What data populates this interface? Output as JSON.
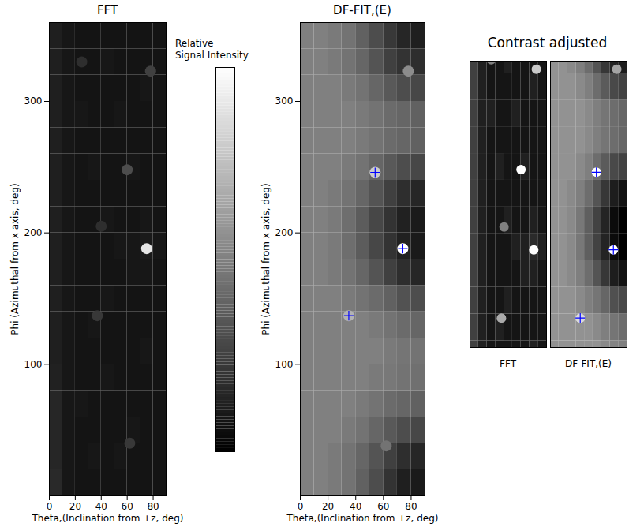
{
  "chart_data": [
    {
      "type": "heatmap",
      "title": "FFT",
      "xlabel": "Theta,(Inclination from +z, deg)",
      "ylabel": "Phi (Azimuthal from x axis, deg)",
      "xlim": [
        0,
        90
      ],
      "ylim": [
        0,
        360
      ],
      "xticks": [
        0,
        20,
        40,
        60,
        80
      ],
      "yticks": [
        100,
        200,
        300
      ],
      "theta_bins": [
        0,
        10,
        20,
        30,
        40,
        50,
        60,
        70,
        80,
        90
      ],
      "phi_bins": [
        0,
        20,
        40,
        60,
        80,
        100,
        120,
        140,
        160,
        180,
        200,
        220,
        240,
        260,
        280,
        300,
        320,
        340,
        360
      ],
      "cells": [
        [
          0.16,
          0.09,
          0.08,
          0.08,
          0.08,
          0.08,
          0.08,
          0.08,
          0.08
        ],
        [
          0.15,
          0.09,
          0.08,
          0.09,
          0.08,
          0.09,
          0.08,
          0.08,
          0.08
        ],
        [
          0.15,
          0.09,
          0.08,
          0.08,
          0.08,
          0.08,
          0.09,
          0.08,
          0.08
        ],
        [
          0.15,
          0.09,
          0.09,
          0.08,
          0.08,
          0.08,
          0.08,
          0.08,
          0.08
        ],
        [
          0.13,
          0.09,
          0.08,
          0.08,
          0.09,
          0.08,
          0.08,
          0.08,
          0.08
        ],
        [
          0.12,
          0.09,
          0.08,
          0.08,
          0.08,
          0.08,
          0.08,
          0.09,
          0.08
        ],
        [
          0.12,
          0.09,
          0.08,
          0.09,
          0.08,
          0.08,
          0.08,
          0.08,
          0.08
        ],
        [
          0.12,
          0.09,
          0.08,
          0.08,
          0.09,
          0.08,
          0.08,
          0.08,
          0.08
        ],
        [
          0.12,
          0.09,
          0.08,
          0.08,
          0.08,
          0.08,
          0.09,
          0.09,
          0.08
        ],
        [
          0.12,
          0.09,
          0.08,
          0.08,
          0.08,
          0.09,
          0.09,
          0.1,
          0.09
        ],
        [
          0.12,
          0.09,
          0.08,
          0.08,
          0.09,
          0.08,
          0.08,
          0.09,
          0.08
        ],
        [
          0.12,
          0.09,
          0.08,
          0.08,
          0.08,
          0.08,
          0.08,
          0.08,
          0.08
        ],
        [
          0.12,
          0.09,
          0.08,
          0.09,
          0.08,
          0.08,
          0.09,
          0.08,
          0.08
        ],
        [
          0.12,
          0.09,
          0.08,
          0.08,
          0.08,
          0.08,
          0.08,
          0.08,
          0.08
        ],
        [
          0.12,
          0.09,
          0.09,
          0.08,
          0.08,
          0.09,
          0.08,
          0.08,
          0.08
        ],
        [
          0.12,
          0.09,
          0.08,
          0.08,
          0.08,
          0.08,
          0.08,
          0.09,
          0.08
        ],
        [
          0.12,
          0.09,
          0.08,
          0.08,
          0.09,
          0.08,
          0.08,
          0.08,
          0.08
        ],
        [
          0.12,
          0.09,
          0.08,
          0.08,
          0.08,
          0.08,
          0.08,
          0.08,
          0.08
        ]
      ],
      "spots": [
        {
          "theta": 75,
          "phi": 188,
          "value": 0.9
        },
        {
          "theta": 60,
          "phi": 248,
          "value": 0.3
        },
        {
          "theta": 37,
          "phi": 137,
          "value": 0.22
        },
        {
          "theta": 62,
          "phi": 40,
          "value": 0.22
        },
        {
          "theta": 78,
          "phi": 323,
          "value": 0.25
        },
        {
          "theta": 25,
          "phi": 330,
          "value": 0.18
        },
        {
          "theta": 40,
          "phi": 205,
          "value": 0.18
        }
      ]
    },
    {
      "type": "colorbar",
      "label": "Relative Signal Intensity",
      "range": [
        0,
        1
      ],
      "colors": [
        "#000000",
        "#ffffff"
      ]
    },
    {
      "type": "heatmap",
      "title": "DF-FIT,(E)",
      "xlabel": "Theta,(Inclination from +z, deg)",
      "ylabel": "Phi (Azimuthal from x axis, deg)",
      "xlim": [
        0,
        90
      ],
      "ylim": [
        0,
        360
      ],
      "xticks": [
        0,
        20,
        40,
        60,
        80
      ],
      "yticks": [
        100,
        200,
        300
      ],
      "theta_bins": [
        0,
        10,
        20,
        30,
        40,
        50,
        60,
        70,
        80,
        90
      ],
      "phi_bins": [
        0,
        20,
        40,
        60,
        80,
        100,
        120,
        140,
        160,
        180,
        200,
        220,
        240,
        260,
        280,
        300,
        320,
        340,
        360
      ],
      "cells": [
        [
          0.5,
          0.5,
          0.48,
          0.45,
          0.38,
          0.3,
          0.2,
          0.12,
          0.1
        ],
        [
          0.5,
          0.5,
          0.48,
          0.45,
          0.4,
          0.33,
          0.25,
          0.18,
          0.15
        ],
        [
          0.5,
          0.5,
          0.5,
          0.48,
          0.45,
          0.4,
          0.35,
          0.3,
          0.28
        ],
        [
          0.5,
          0.5,
          0.5,
          0.5,
          0.48,
          0.45,
          0.42,
          0.4,
          0.38
        ],
        [
          0.5,
          0.5,
          0.5,
          0.5,
          0.5,
          0.48,
          0.47,
          0.45,
          0.44
        ],
        [
          0.5,
          0.5,
          0.5,
          0.5,
          0.5,
          0.5,
          0.48,
          0.46,
          0.45
        ],
        [
          0.5,
          0.5,
          0.5,
          0.5,
          0.5,
          0.48,
          0.45,
          0.42,
          0.4
        ],
        [
          0.5,
          0.5,
          0.5,
          0.48,
          0.45,
          0.42,
          0.38,
          0.32,
          0.3
        ],
        [
          0.5,
          0.5,
          0.48,
          0.45,
          0.4,
          0.33,
          0.25,
          0.18,
          0.15
        ],
        [
          0.5,
          0.5,
          0.48,
          0.43,
          0.36,
          0.28,
          0.2,
          0.13,
          0.1
        ],
        [
          0.5,
          0.5,
          0.48,
          0.43,
          0.36,
          0.28,
          0.2,
          0.13,
          0.1
        ],
        [
          0.5,
          0.5,
          0.48,
          0.45,
          0.4,
          0.33,
          0.25,
          0.18,
          0.15
        ],
        [
          0.5,
          0.5,
          0.5,
          0.48,
          0.45,
          0.4,
          0.35,
          0.3,
          0.28
        ],
        [
          0.5,
          0.5,
          0.5,
          0.5,
          0.48,
          0.45,
          0.42,
          0.4,
          0.38
        ],
        [
          0.5,
          0.5,
          0.5,
          0.5,
          0.48,
          0.45,
          0.42,
          0.4,
          0.38
        ],
        [
          0.5,
          0.5,
          0.5,
          0.48,
          0.45,
          0.4,
          0.35,
          0.3,
          0.28
        ],
        [
          0.5,
          0.5,
          0.48,
          0.45,
          0.4,
          0.33,
          0.25,
          0.2,
          0.18
        ],
        [
          0.5,
          0.5,
          0.48,
          0.45,
          0.38,
          0.3,
          0.22,
          0.15,
          0.12
        ]
      ],
      "spots": [
        {
          "theta": 74,
          "phi": 188,
          "value": 1.0
        },
        {
          "theta": 54,
          "phi": 246,
          "value": 0.8
        },
        {
          "theta": 35,
          "phi": 137,
          "value": 0.7
        },
        {
          "theta": 62,
          "phi": 38,
          "value": 0.45
        },
        {
          "theta": 78,
          "phi": 323,
          "value": 0.55
        }
      ],
      "markers": {
        "marker": "plus",
        "color": "#0000ff",
        "points": [
          {
            "theta": 35,
            "phi": 137
          },
          {
            "theta": 54,
            "phi": 246
          },
          {
            "theta": 74,
            "phi": 188
          }
        ]
      }
    },
    {
      "type": "heatmap_group",
      "title": "Contrast adjusted",
      "panels": [
        {
          "caption": "FFT",
          "xlim": [
            0,
            90
          ],
          "ylim": [
            115,
            329
          ],
          "color_range": [
            0.06,
            0.3
          ],
          "tick_labels": false
        },
        {
          "caption": "DF-FIT,(E)",
          "xlim": [
            0,
            90
          ],
          "ylim": [
            115,
            329
          ],
          "color_range": [
            0.1,
            0.8
          ],
          "tick_labels": false
        }
      ]
    }
  ]
}
